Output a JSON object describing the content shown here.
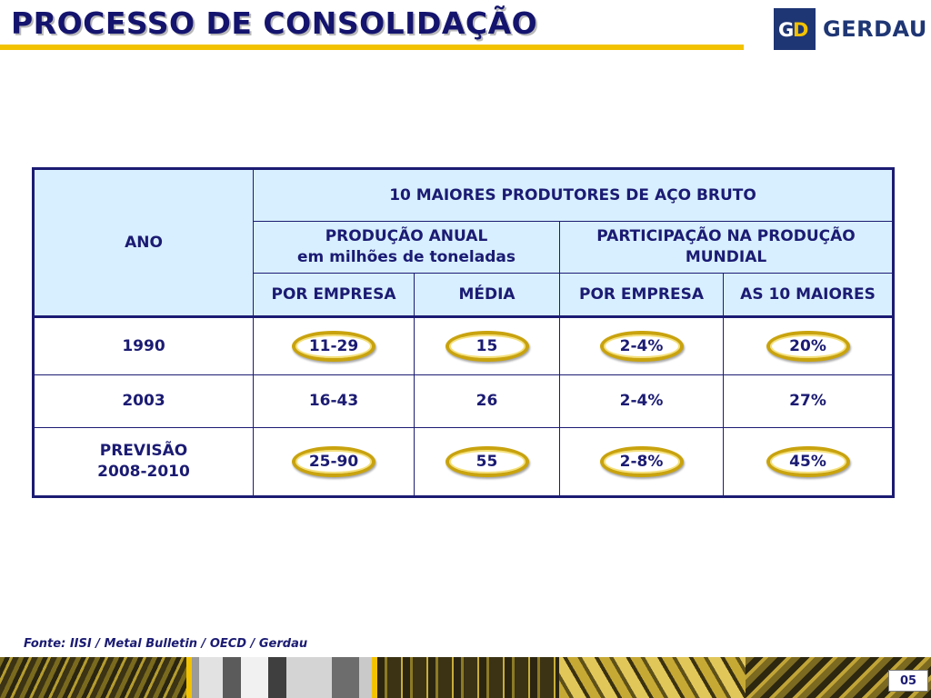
{
  "slide": {
    "title": "PROCESSO DE CONSOLIDAÇÃO",
    "logo_text": "GERDAU",
    "logo_mark": "G+D",
    "source": "Fonte:  IISI / Metal Bulletin / OECD / Gerdau",
    "page_number": "05"
  },
  "table": {
    "year_header": "ANO",
    "group_header": "10 MAIORES PRODUTORES DE AÇO BRUTO",
    "production_header_line1": "PRODUÇÃO ANUAL",
    "production_header_line2": "em milhões de toneladas",
    "share_header_line1": "PARTICIPAÇÃO NA PRODUÇÃO",
    "share_header_line2": "MUNDIAL",
    "col_per_company": "POR EMPRESA",
    "col_average": "MÉDIA",
    "col_share_per_company": "POR EMPRESA",
    "col_top10": "AS 10 MAIORES",
    "rows": [
      {
        "year_line1": "1990",
        "year_line2": "",
        "per_company": "11-29",
        "average": "15",
        "share_per_company": "2-4%",
        "top10": "20%",
        "highlighted": true
      },
      {
        "year_line1": "2003",
        "year_line2": "",
        "per_company": "16-43",
        "average": "26",
        "share_per_company": "2-4%",
        "top10": "27%",
        "highlighted": false
      },
      {
        "year_line1": "PREVISÃO",
        "year_line2": "2008-2010",
        "per_company": "25-90",
        "average": "55",
        "share_per_company": "2-8%",
        "top10": "45%",
        "highlighted": true
      }
    ]
  },
  "colors": {
    "title": "#14146e",
    "title_rule": "#f2c200",
    "table_border": "#1b1b73",
    "header_fill": "#d8efff",
    "oval_gold": "#c9a30e",
    "logo_blue": "#1f3674"
  }
}
